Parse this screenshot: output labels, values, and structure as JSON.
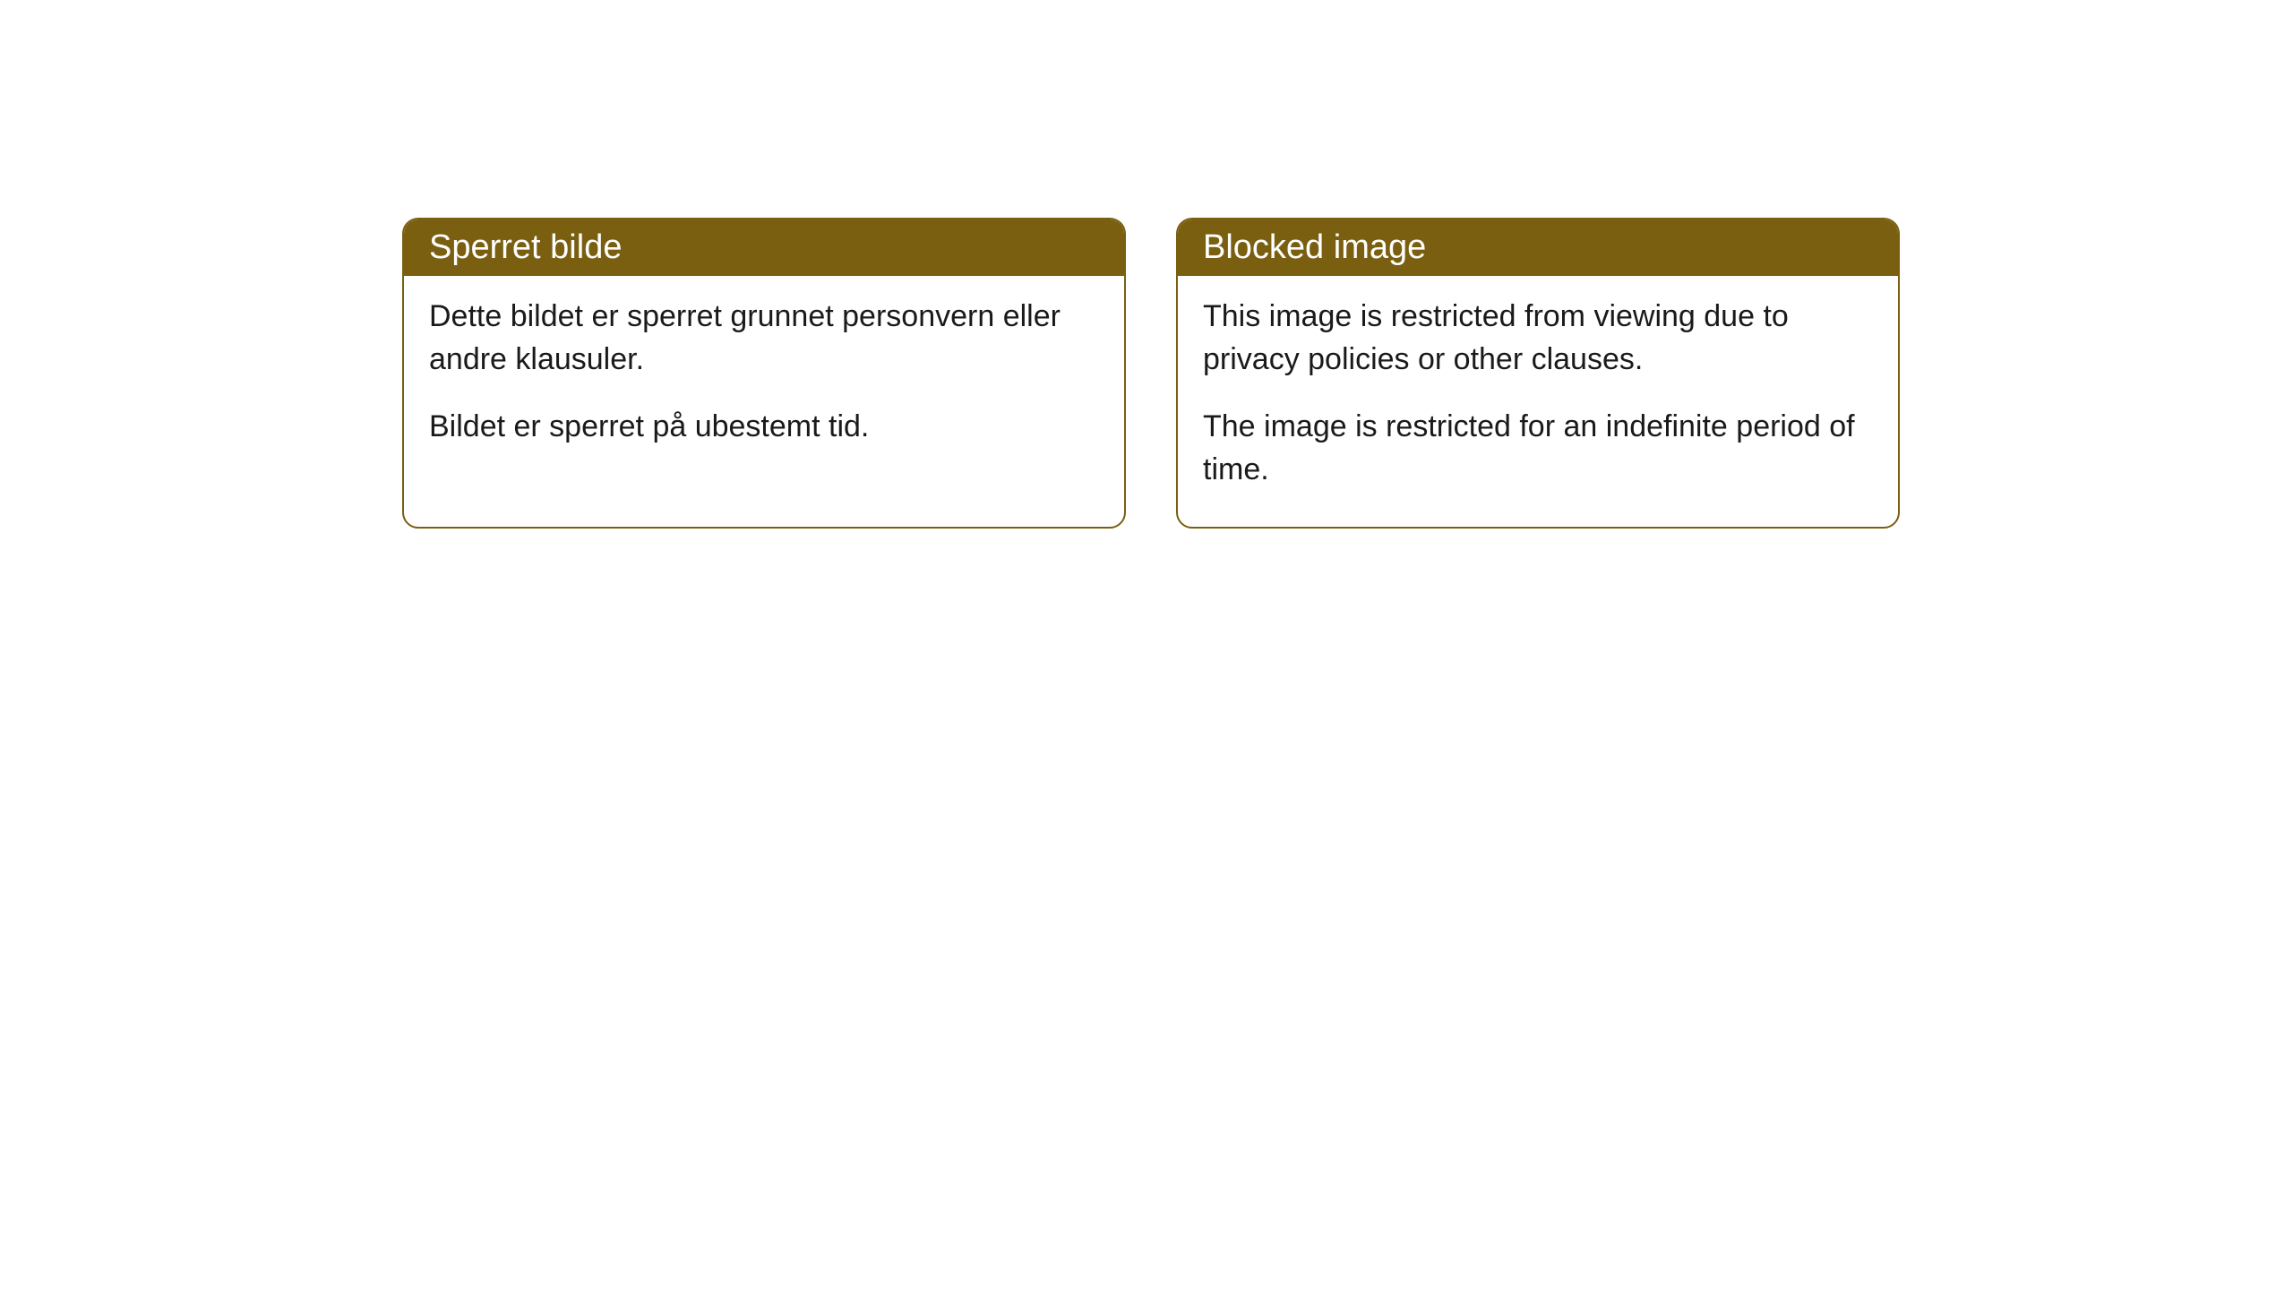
{
  "cards": [
    {
      "header": "Sperret bilde",
      "paragraph1": "Dette bildet er sperret grunnet personvern eller andre klausuler.",
      "paragraph2": "Bildet er sperret på ubestemt tid."
    },
    {
      "header": "Blocked image",
      "paragraph1": "This image is restricted from viewing due to privacy policies or other clauses.",
      "paragraph2": "The image is restricted for an indefinite period of time."
    }
  ],
  "styling": {
    "header_background": "#7a5f11",
    "header_text_color": "#ffffff",
    "card_border_color": "#7a5f11",
    "card_background": "#ffffff",
    "body_text_color": "#1a1a1a",
    "page_background": "#ffffff",
    "border_radius": 18,
    "header_fontsize": 38,
    "body_fontsize": 34
  }
}
